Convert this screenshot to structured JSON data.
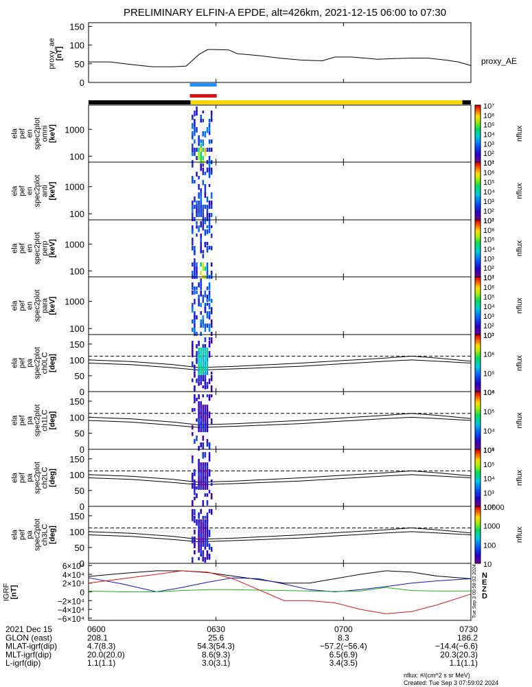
{
  "title": "PRELIMINARY ELFIN-A EPDE, alt=426km, 2021-12-15 06:00 to 07:30",
  "time_ticks": [
    "0600",
    "0630",
    "0700",
    "0730"
  ],
  "date_label": "2021 Dec 15",
  "colors": {
    "axis": "#000000",
    "science_blue": "#1e90ff",
    "science_red": "#dd1111",
    "spin_bar_black": "#000000",
    "spin_bar_yellow": "#f5d800",
    "grf_n": "#000000",
    "grf_e": "#1010c0",
    "grf_z": "#20b020",
    "grf_red": "#dd1111"
  },
  "panels": {
    "ae": {
      "ylabel": [
        "proxy_ae",
        "[nT]"
      ],
      "yticks": [
        "150",
        "100",
        "50",
        "0"
      ],
      "legend": "proxy_AE"
    },
    "energy": [
      {
        "ylabel": [
          "ela",
          "pef",
          "en",
          "spec2plot",
          "omni",
          "[keV]"
        ]
      },
      {
        "ylabel": [
          "ela",
          "pef",
          "en",
          "spec2plot",
          "anti",
          "[keV]"
        ]
      },
      {
        "ylabel": [
          "ela",
          "pef",
          "en",
          "spec2plot",
          "perp",
          "[keV]"
        ]
      },
      {
        "ylabel": [
          "ela",
          "pef",
          "en",
          "spec2plot",
          "para",
          "[keV]"
        ]
      }
    ],
    "energy_yticks": [
      "1000",
      "100"
    ],
    "pitch": [
      {
        "ylabel": [
          "ela",
          "pef",
          "pa",
          "spec2plot",
          "ch0LC",
          "[deg]"
        ]
      },
      {
        "ylabel": [
          "ela",
          "pef",
          "pa",
          "spec2plot",
          "ch1LC",
          "[deg]"
        ]
      },
      {
        "ylabel": [
          "ela",
          "pef",
          "pa",
          "spec2plot",
          "ch2LC",
          "[deg]"
        ]
      },
      {
        "ylabel": [
          "ela",
          "pef",
          "pa",
          "spec2plot",
          "ch3LC",
          "[deg]"
        ]
      }
    ],
    "pitch_yticks": [
      "150",
      "100",
      "50",
      "0"
    ],
    "grf": {
      "ylabel": [
        "IGRF",
        "[nT]"
      ],
      "yticks": [
        "6×10⁴",
        "4×10⁴",
        "2×10⁴",
        "0",
        "−2×10⁴",
        "−4×10⁴",
        "−6×10⁴"
      ],
      "legend": [
        "N",
        "E",
        "Z",
        "D"
      ],
      "side_stamp": "Tue Sep 3 00:58:02 2024"
    }
  },
  "colorbars": {
    "nflux_label": "nflux",
    "energy_ticks": [
      "10⁷",
      "10⁶",
      "10⁵",
      "10⁴",
      "10³",
      "10²",
      "10¹"
    ],
    "pitch_ticks": [
      [
        "10⁷",
        "10⁶",
        "10⁵",
        "10⁴"
      ],
      [
        "10⁶",
        "10⁵",
        "10⁴",
        "10³"
      ],
      [
        "10⁶",
        "10⁵",
        "10⁴",
        "10³",
        "10²"
      ],
      [
        "10000",
        "1000",
        "100",
        "10"
      ]
    ]
  },
  "orbit_table": {
    "rows": [
      {
        "label": "2021 Dec 15",
        "values": [
          "0600",
          "0630",
          "0700",
          "0730"
        ]
      },
      {
        "label": "GLON (east)",
        "values": [
          "208.1",
          "25.6",
          "8.3",
          "186.2"
        ]
      },
      {
        "label": "MLAT-igrf(dip)",
        "values": [
          "4.7(8.3)",
          "54.3(54.3)",
          "−57.2(−56.4)",
          "−14.4(−6.6)"
        ]
      },
      {
        "label": "MLT-igrf(dip)",
        "values": [
          "20.0(20.0)",
          "8.6(9.3)",
          "6.5(6.9)",
          "20.3(20.3)"
        ]
      },
      {
        "label": "L-igrf(dip)",
        "values": [
          "1.1(1.1)",
          "3.0(3.1)",
          "3.4(3.5)",
          "1.1(1.1)"
        ]
      }
    ]
  },
  "footer": {
    "units": "nflux: #/(cm^2 s sr MeV)",
    "created": "Created: Tue Sep  3 07:59:02 2024"
  },
  "chart_data": {
    "type": "line",
    "title": "PRELIMINARY ELFIN-A EPDE, alt=426km, 2021-12-15 06:00 to 07:30",
    "x_range_minutes": [
      0,
      90
    ],
    "x_ticks": [
      "0600",
      "0630",
      "0700",
      "0730"
    ],
    "ae": {
      "series_name": "proxy_AE",
      "ylim": [
        0,
        150
      ],
      "x": [
        0,
        5,
        10,
        15,
        20,
        23,
        26,
        28,
        30,
        33,
        35,
        40,
        45,
        50,
        55,
        58,
        62,
        68,
        72,
        76,
        80,
        84,
        87,
        90
      ],
      "y": [
        55,
        55,
        48,
        42,
        42,
        44,
        75,
        88,
        88,
        87,
        77,
        72,
        65,
        60,
        58,
        68,
        68,
        62,
        64,
        65,
        65,
        60,
        55,
        45
      ]
    },
    "science_zone_minutes": [
      24,
      30
    ],
    "spin_bar": {
      "black": [
        0,
        24
      ],
      "yellow": [
        24,
        88
      ],
      "black_end": [
        88,
        90
      ]
    },
    "energy_ylim_log": [
      60,
      8000
    ],
    "pitch": {
      "ylim": [
        0,
        180
      ],
      "dashed_line": 112,
      "loss_cone_x": [
        0,
        10,
        20,
        26,
        35,
        50,
        60,
        70,
        76,
        82,
        90
      ],
      "loss_cone_upper": [
        100,
        95,
        85,
        76,
        80,
        90,
        98,
        106,
        112,
        106,
        96
      ],
      "loss_cone_lower": [
        90,
        85,
        75,
        68,
        72,
        80,
        88,
        96,
        100,
        96,
        90
      ]
    },
    "grf": {
      "ylim": [
        -65000,
        65000
      ],
      "x": [
        0,
        8,
        16,
        22,
        28,
        34,
        40,
        46,
        52,
        58,
        64,
        70,
        76,
        82,
        90
      ],
      "series": [
        {
          "name": "N",
          "values": [
            35000,
            42000,
            48000,
            48000,
            44000,
            36000,
            28000,
            20000,
            20000,
            30000,
            40000,
            48000,
            45000,
            36000,
            30000
          ]
        },
        {
          "name": "E",
          "values": [
            32000,
            18000,
            0,
            10000,
            22000,
            32000,
            30000,
            18000,
            5000,
            0,
            5000,
            12000,
            20000,
            25000,
            30000
          ]
        },
        {
          "name": "Z",
          "values": [
            2000,
            0,
            0,
            3000,
            5000,
            5000,
            4000,
            3000,
            2000,
            1000,
            2000,
            10000,
            3000,
            2000,
            2000
          ]
        },
        {
          "name": "D",
          "values": [
            20000,
            30000,
            40000,
            48000,
            45000,
            30000,
            5000,
            -20000,
            -20000,
            -25000,
            -40000,
            -50000,
            -45000,
            -30000,
            -5000
          ]
        }
      ]
    },
    "spectrogram": {
      "x_minutes": [
        24.5,
        25,
        25.5,
        26,
        26.5,
        27,
        27.5,
        28,
        28.5,
        29
      ],
      "note_max_flux_log10": 7
    }
  }
}
